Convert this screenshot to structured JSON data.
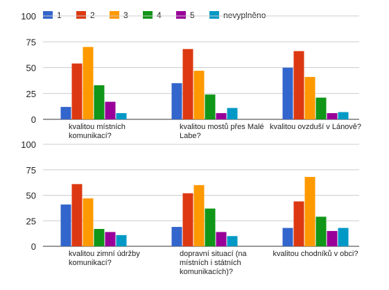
{
  "chart_data": {
    "type": "bar",
    "legend": {
      "placement": "top-left",
      "entries": [
        "1",
        "2",
        "3",
        "4",
        "5",
        "nevyplněno"
      ]
    },
    "colors": [
      "#3366cc",
      "#dc3912",
      "#ff9900",
      "#109618",
      "#990099",
      "#0099c6"
    ],
    "ylim": [
      0,
      100
    ],
    "yticks": [
      "0",
      "25",
      "50",
      "75",
      "100"
    ],
    "grid": true,
    "panels": [
      {
        "categories": [
          "kvalitou místních komunikací?",
          "kvalitou mostů přes Malé Labe?",
          "kvalitou ovzduší v Lánově?"
        ],
        "series": [
          {
            "name": "1",
            "values": [
              12,
              35,
              50
            ]
          },
          {
            "name": "2",
            "values": [
              54,
              68,
              66
            ]
          },
          {
            "name": "3",
            "values": [
              70,
              47,
              41
            ]
          },
          {
            "name": "4",
            "values": [
              33,
              24,
              21
            ]
          },
          {
            "name": "5",
            "values": [
              17,
              6,
              6
            ]
          },
          {
            "name": "nevyplněno",
            "values": [
              6,
              11,
              7
            ]
          }
        ]
      },
      {
        "categories": [
          "kvalitou zimní údržby komunikací?",
          "dopravní situací (na místních i státních komunikacích)?",
          "kvalitou chodníků v obci?"
        ],
        "series": [
          {
            "name": "1",
            "values": [
              41,
              19,
              18
            ]
          },
          {
            "name": "2",
            "values": [
              61,
              52,
              44
            ]
          },
          {
            "name": "3",
            "values": [
              47,
              60,
              68
            ]
          },
          {
            "name": "4",
            "values": [
              17,
              37,
              29
            ]
          },
          {
            "name": "5",
            "values": [
              14,
              14,
              15
            ]
          },
          {
            "name": "nevyplněno",
            "values": [
              11,
              10,
              18
            ]
          }
        ]
      }
    ]
  }
}
